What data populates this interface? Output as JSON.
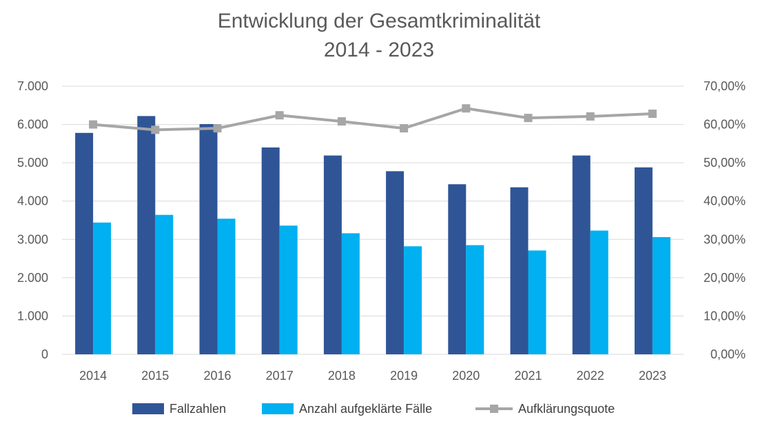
{
  "chart_data": {
    "type": "bar",
    "title": "Entwicklung der Gesamtkriminalität",
    "subtitle": "2014 - 2023",
    "categories": [
      "2014",
      "2015",
      "2016",
      "2017",
      "2018",
      "2019",
      "2020",
      "2021",
      "2022",
      "2023"
    ],
    "series": [
      {
        "name": "Fallzahlen",
        "type": "bar",
        "axis": "left",
        "color": "#2f5597",
        "values": [
          5780,
          6220,
          6010,
          5400,
          5190,
          4780,
          4440,
          4360,
          5190,
          4880
        ]
      },
      {
        "name": "Anzahl aufgeklärte Fälle",
        "type": "bar",
        "axis": "left",
        "color": "#00b0f0",
        "values": [
          3440,
          3640,
          3540,
          3360,
          3160,
          2820,
          2850,
          2710,
          3230,
          3060
        ]
      },
      {
        "name": "Aufklärungsquote",
        "type": "line",
        "axis": "right",
        "color": "#a6a6a6",
        "values": [
          60.0,
          58.6,
          59.0,
          62.4,
          60.8,
          59.0,
          64.2,
          61.7,
          62.1,
          62.8
        ]
      }
    ],
    "yAxisLeft": {
      "min": 0,
      "max": 7000,
      "ticks": [
        0,
        1000,
        2000,
        3000,
        4000,
        5000,
        6000,
        7000
      ],
      "tick_labels": [
        "0",
        "1.000",
        "2.000",
        "3.000",
        "4.000",
        "5.000",
        "6.000",
        "7.000"
      ]
    },
    "yAxisRight": {
      "min": 0,
      "max": 70,
      "ticks": [
        0,
        10,
        20,
        30,
        40,
        50,
        60,
        70
      ],
      "tick_labels": [
        "0,00%",
        "10,00%",
        "20,00%",
        "30,00%",
        "40,00%",
        "50,00%",
        "60,00%",
        "70,00%"
      ]
    },
    "grid": true,
    "legend": "bottom"
  }
}
